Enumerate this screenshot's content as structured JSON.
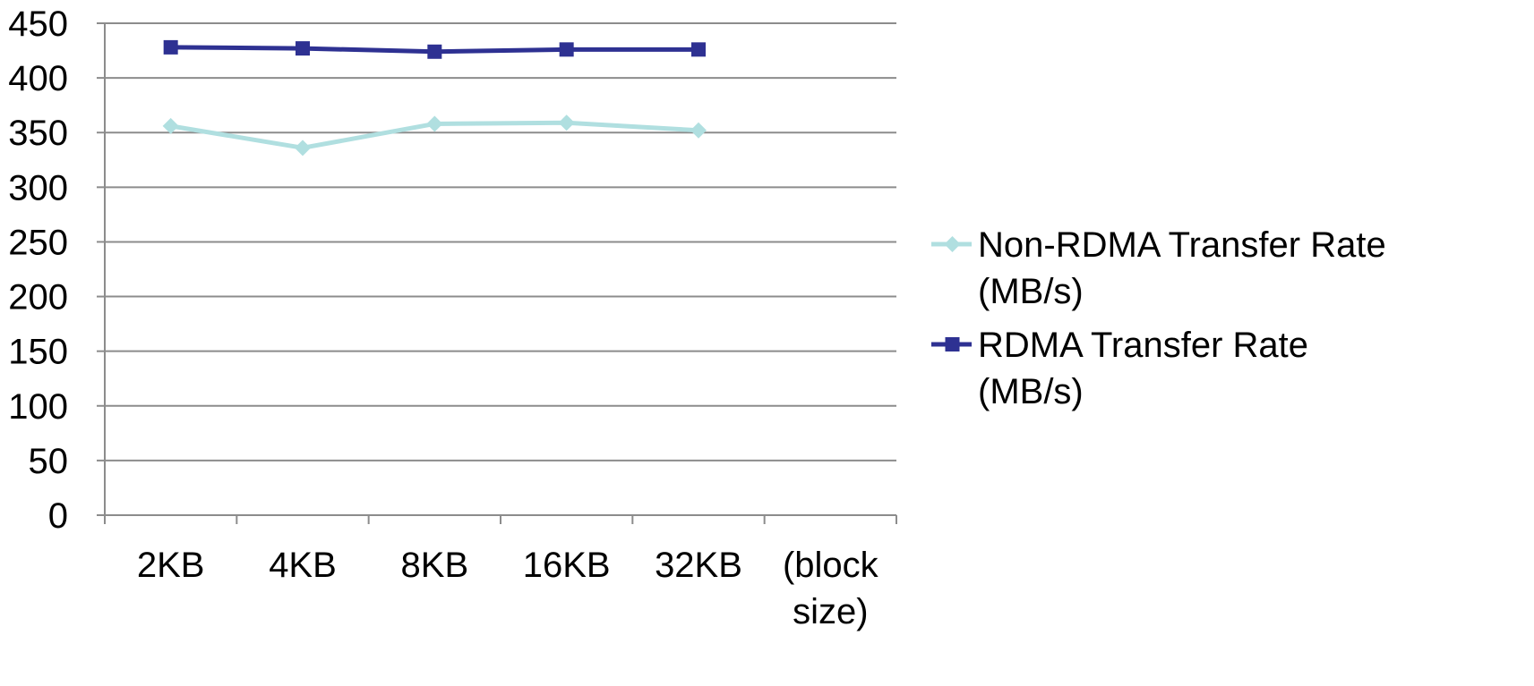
{
  "chart_data": {
    "type": "line",
    "categories": [
      "2KB",
      "4KB",
      "8KB",
      "16KB",
      "32KB",
      "(block size)"
    ],
    "ylim": [
      0,
      450
    ],
    "yticks": [
      0,
      50,
      100,
      150,
      200,
      250,
      300,
      350,
      400,
      450
    ],
    "grid": true,
    "legend_position": "right",
    "series": [
      {
        "name": "Non-RDMA Transfer Rate (MB/s)",
        "legend_lines": [
          "Non-RDMA Transfer Rate",
          "(MB/s)"
        ],
        "values": [
          356,
          336,
          358,
          359,
          352,
          null
        ],
        "color": "#b0dfe0",
        "marker": "diamond"
      },
      {
        "name": "RDMA Transfer Rate (MB/s)",
        "legend_lines": [
          "RDMA Transfer Rate",
          "(MB/s)"
        ],
        "values": [
          428,
          427,
          424,
          426,
          426,
          null
        ],
        "color": "#2e3192",
        "marker": "square"
      }
    ],
    "category_label_lines": [
      [
        "2KB"
      ],
      [
        "4KB"
      ],
      [
        "8KB"
      ],
      [
        "16KB"
      ],
      [
        "32KB"
      ],
      [
        "(block",
        "size)"
      ]
    ]
  },
  "colors": {
    "grid": "#8c8c8c",
    "axis": "#8c8c8c"
  }
}
